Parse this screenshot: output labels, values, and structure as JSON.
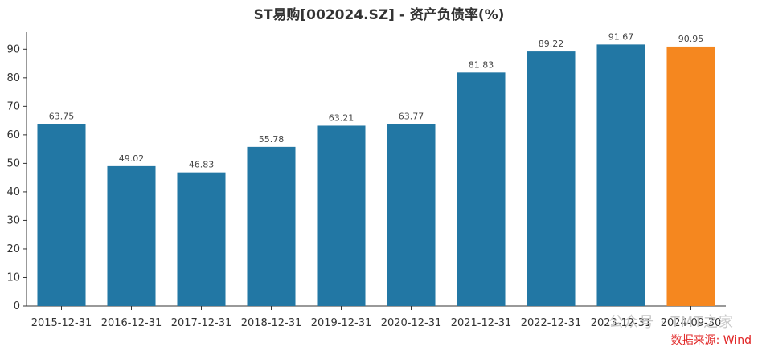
{
  "chart_data": {
    "type": "bar",
    "title": "ST易购[002024.SZ] - 资产负债率(%)",
    "categories": [
      "2015-12-31",
      "2016-12-31",
      "2017-12-31",
      "2018-12-31",
      "2019-12-31",
      "2020-12-31",
      "2021-12-31",
      "2022-12-31",
      "2023-12-31",
      "2024-09-30"
    ],
    "values": [
      63.75,
      49.02,
      46.83,
      55.78,
      63.21,
      63.77,
      81.83,
      89.22,
      91.67,
      90.95
    ],
    "value_labels": [
      "63.75",
      "49.02",
      "46.83",
      "55.78",
      "63.21",
      "63.77",
      "81.83",
      "89.22",
      "91.67",
      "90.95"
    ],
    "ylim": [
      0,
      96
    ],
    "yticks": [
      0,
      10,
      20,
      30,
      40,
      50,
      60,
      70,
      80,
      90
    ],
    "xlabel": "",
    "ylabel": "",
    "grid": false,
    "colors": {
      "bar": "#2277a4",
      "highlight": "#f5871f",
      "axis": "#333333"
    },
    "highlight_index": 9
  },
  "source_note": "数据来源: Wind",
  "watermark": "公众号 · TMT之家"
}
